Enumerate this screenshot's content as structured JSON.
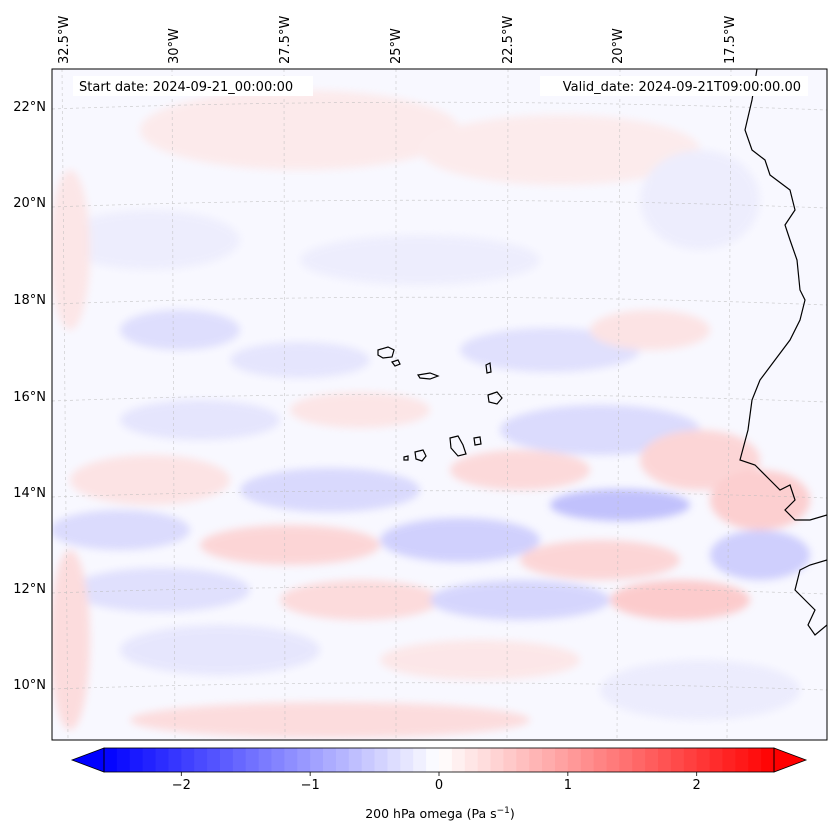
{
  "header": {
    "start_date": "Start date: 2024-09-21_00:00:00",
    "valid_date": "Valid_date: 2024-09-21T09:00:00.00"
  },
  "longitude_labels": [
    "32.5°W",
    "30°W",
    "27.5°W",
    "25°W",
    "22.5°W",
    "20°W",
    "17.5°W"
  ],
  "latitude_labels": [
    "22°N",
    "20°N",
    "18°N",
    "16°N",
    "14°N",
    "12°N",
    "10°N"
  ],
  "colorbar": {
    "label_main": "200 hPa omega (Pa s",
    "label_exp": "−1",
    "label_close": ")",
    "ticks": [
      "−2",
      "−1",
      "0",
      "1",
      "2"
    ],
    "tick_values": [
      -2,
      -1,
      0,
      1,
      2
    ],
    "vmin": -2.6,
    "vmax": 2.6,
    "colors": {
      "negative": "#0000ff",
      "zero": "#ffffff",
      "positive": "#ff0000"
    }
  }
}
